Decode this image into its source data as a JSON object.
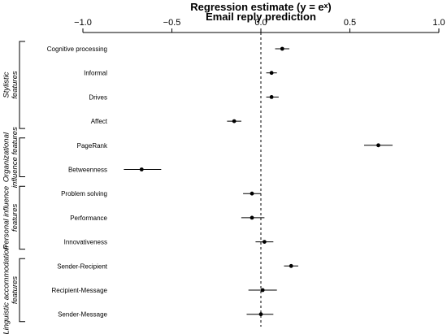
{
  "chart_data": {
    "type": "scatter",
    "title": "Regression estimate (y = eˣ)",
    "subtitle": "Email reply prediction",
    "xlim": [
      -1.0,
      1.0
    ],
    "x_ticks": [
      "−1.0",
      "−0.5",
      "0.0",
      "0.5",
      "1.0"
    ],
    "x_tick_values": [
      -1.0,
      -0.5,
      0.0,
      0.5,
      1.0
    ],
    "reference_line": 0,
    "groups": [
      {
        "label_lines": [
          "Stylistic",
          "features"
        ],
        "items": [
          0,
          1,
          2,
          3
        ]
      },
      {
        "label_lines": [
          "Organizational",
          "influence features"
        ],
        "items": [
          4,
          5
        ]
      },
      {
        "label_lines": [
          "Personal influence",
          "features"
        ],
        "items": [
          6,
          7,
          8
        ]
      },
      {
        "label_lines": [
          "Linguistic accommodation",
          "features"
        ],
        "items": [
          9,
          10,
          11
        ]
      }
    ],
    "features": [
      {
        "name": "Cognitive processing",
        "estimate": 0.12,
        "ci": [
          0.08,
          0.16
        ]
      },
      {
        "name": "Informal",
        "estimate": 0.06,
        "ci": [
          0.03,
          0.09
        ]
      },
      {
        "name": "Drives",
        "estimate": 0.06,
        "ci": [
          0.03,
          0.1
        ]
      },
      {
        "name": "Affect",
        "estimate": -0.15,
        "ci": [
          -0.19,
          -0.11
        ]
      },
      {
        "name": "PageRank",
        "estimate": 0.66,
        "ci": [
          0.58,
          0.74
        ]
      },
      {
        "name": "Betweenness",
        "estimate": -0.67,
        "ci": [
          -0.77,
          -0.56
        ]
      },
      {
        "name": "Problem solving",
        "estimate": -0.05,
        "ci": [
          -0.1,
          0.0
        ]
      },
      {
        "name": "Performance",
        "estimate": -0.05,
        "ci": [
          -0.11,
          0.02
        ]
      },
      {
        "name": "Innovativeness",
        "estimate": 0.02,
        "ci": [
          -0.03,
          0.07
        ]
      },
      {
        "name": "Sender-Recipient",
        "estimate": 0.17,
        "ci": [
          0.13,
          0.21
        ]
      },
      {
        "name": "Recipient-Message",
        "estimate": 0.01,
        "ci": [
          -0.07,
          0.09
        ]
      },
      {
        "name": "Sender-Message",
        "estimate": 0.0,
        "ci": [
          -0.08,
          0.07
        ]
      }
    ]
  }
}
